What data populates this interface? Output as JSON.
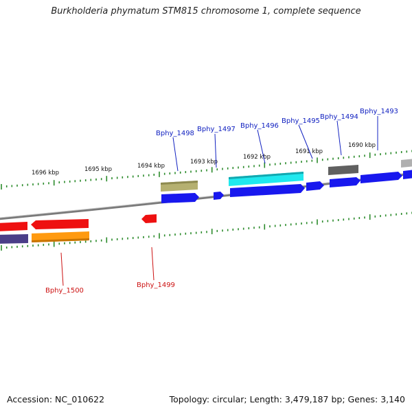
{
  "title": "Burkholderia phymatum STM815 chromosome 1, complete sequence",
  "footer": {
    "accession": "Accession: NC_010622",
    "summary": "Topology: circular; Length: 3,479,187 bp; Genes: 3,140"
  },
  "colors": {
    "backbone": "#8a8a8a",
    "tick": "#2a8a2a",
    "label_plus": "#1020c0",
    "label_minus": "#cc1010"
  },
  "scale_labels": [
    "1696 kbp",
    "1695 kbp",
    "1694 kbp",
    "1693 kbp",
    "1692 kbp",
    "1691 kbp",
    "1690 kbp"
  ],
  "gene_labels": [
    {
      "id": "Bphy_1498",
      "strand": "plus"
    },
    {
      "id": "Bphy_1497",
      "strand": "plus"
    },
    {
      "id": "Bphy_1496",
      "strand": "plus"
    },
    {
      "id": "Bphy_1495",
      "strand": "plus"
    },
    {
      "id": "Bphy_1494",
      "strand": "plus"
    },
    {
      "id": "Bphy_1493",
      "strand": "plus"
    },
    {
      "id": "Bphy_1500",
      "strand": "minus"
    },
    {
      "id": "Bphy_1499",
      "strand": "minus"
    }
  ]
}
